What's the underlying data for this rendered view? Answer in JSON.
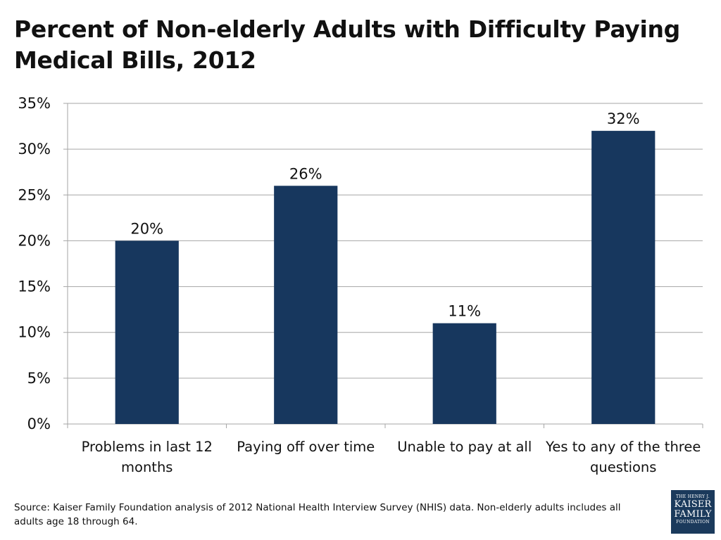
{
  "title": "Percent of Non-elderly Adults with Difficulty Paying Medical Bills, 2012",
  "source": "Source: Kaiser Family Foundation analysis of 2012 National Health Interview Survey (NHIS) data. Non-elderly adults includes all adults age 18 through 64.",
  "logo": {
    "line1": "THE HENRY J.",
    "line2": "KAISER",
    "line3": "FAMILY",
    "line4": "FOUNDATION"
  },
  "colors": {
    "bar": "#17375e",
    "grid": "#a6a6a6",
    "logo_bg": "#1b3a5c"
  },
  "chart_data": {
    "type": "bar",
    "categories": [
      [
        "Problems in last 12",
        "months"
      ],
      [
        "Paying off over time"
      ],
      [
        "Unable to pay at all"
      ],
      [
        "Yes to any of the three",
        "questions"
      ]
    ],
    "values": [
      20,
      26,
      11,
      32
    ],
    "value_labels": [
      "20%",
      "26%",
      "11%",
      "32%"
    ],
    "ylim": [
      0,
      35
    ],
    "yticks": [
      0,
      5,
      10,
      15,
      20,
      25,
      30,
      35
    ],
    "ytick_labels": [
      "0%",
      "5%",
      "10%",
      "15%",
      "20%",
      "25%",
      "30%",
      "35%"
    ],
    "grid": true,
    "legend": "none",
    "xlabel": "",
    "ylabel": ""
  }
}
